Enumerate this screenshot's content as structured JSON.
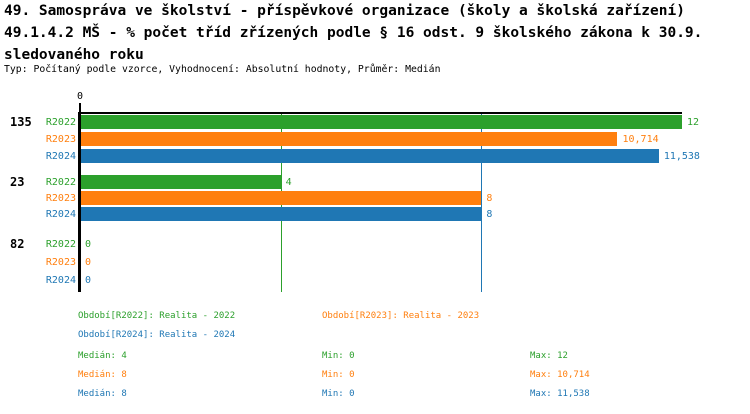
{
  "header": {
    "title_lines": [
      "49. Samospráva ve školství - příspěvkové organizace (školy a školská zařízení)",
      "49.1.4.2 MŠ - % počet tříd zřízených podle § 16 odst. 9 školského zákona k 30.9.",
      "sledovaného roku"
    ],
    "subtitle": "Typ: Počítaný podle vzorce, Vyhodnocení: Absolutní hodnoty, Průměr: Medián"
  },
  "chart_data": {
    "type": "bar",
    "orientation": "horizontal",
    "title": "49.1.4.2 MŠ - % počet tříd zřízených podle § 16 odst. 9 školského zákona k 30.9. sledovaného roku",
    "categories": [
      "135",
      "23",
      "82"
    ],
    "value_axis": {
      "min": 0,
      "max": 12,
      "ticks": [
        "0"
      ],
      "grid": false
    },
    "series": [
      {
        "name": "R2022",
        "color": "#2ca02c",
        "values": [
          12,
          4,
          0
        ],
        "value_labels": [
          "12",
          "4",
          "0"
        ],
        "median": 4,
        "legend": "Období[R2022]: Realita - 2022",
        "stats": {
          "median": "4",
          "min": "0",
          "max": "12"
        }
      },
      {
        "name": "R2023",
        "color": "#ff7f0e",
        "values": [
          10.714,
          8,
          0
        ],
        "value_labels": [
          "10,714",
          "8",
          "0"
        ],
        "median": 8,
        "legend": "Období[R2023]: Realita - 2023",
        "stats": {
          "median": "8",
          "min": "0",
          "max": "10,714"
        }
      },
      {
        "name": "R2024",
        "color": "#1f77b4",
        "values": [
          11.538,
          8,
          0
        ],
        "value_labels": [
          "11,538",
          "8",
          "0"
        ],
        "median": 8,
        "legend": "Období[R2024]: Realita - 2024",
        "stats": {
          "median": "8",
          "min": "0",
          "max": "11,538"
        }
      }
    ],
    "median_lines": [
      {
        "value": 4,
        "color": "#2ca02c"
      },
      {
        "value": 8,
        "color": "#ff7f0e"
      },
      {
        "value": 8,
        "color": "#1f77b4"
      }
    ],
    "legend_position": "bottom"
  },
  "stats_labels": {
    "median": "Medián:",
    "min": "Min:",
    "max": "Max:"
  },
  "colors": {
    "axis": "#000000",
    "background": "#ffffff"
  }
}
